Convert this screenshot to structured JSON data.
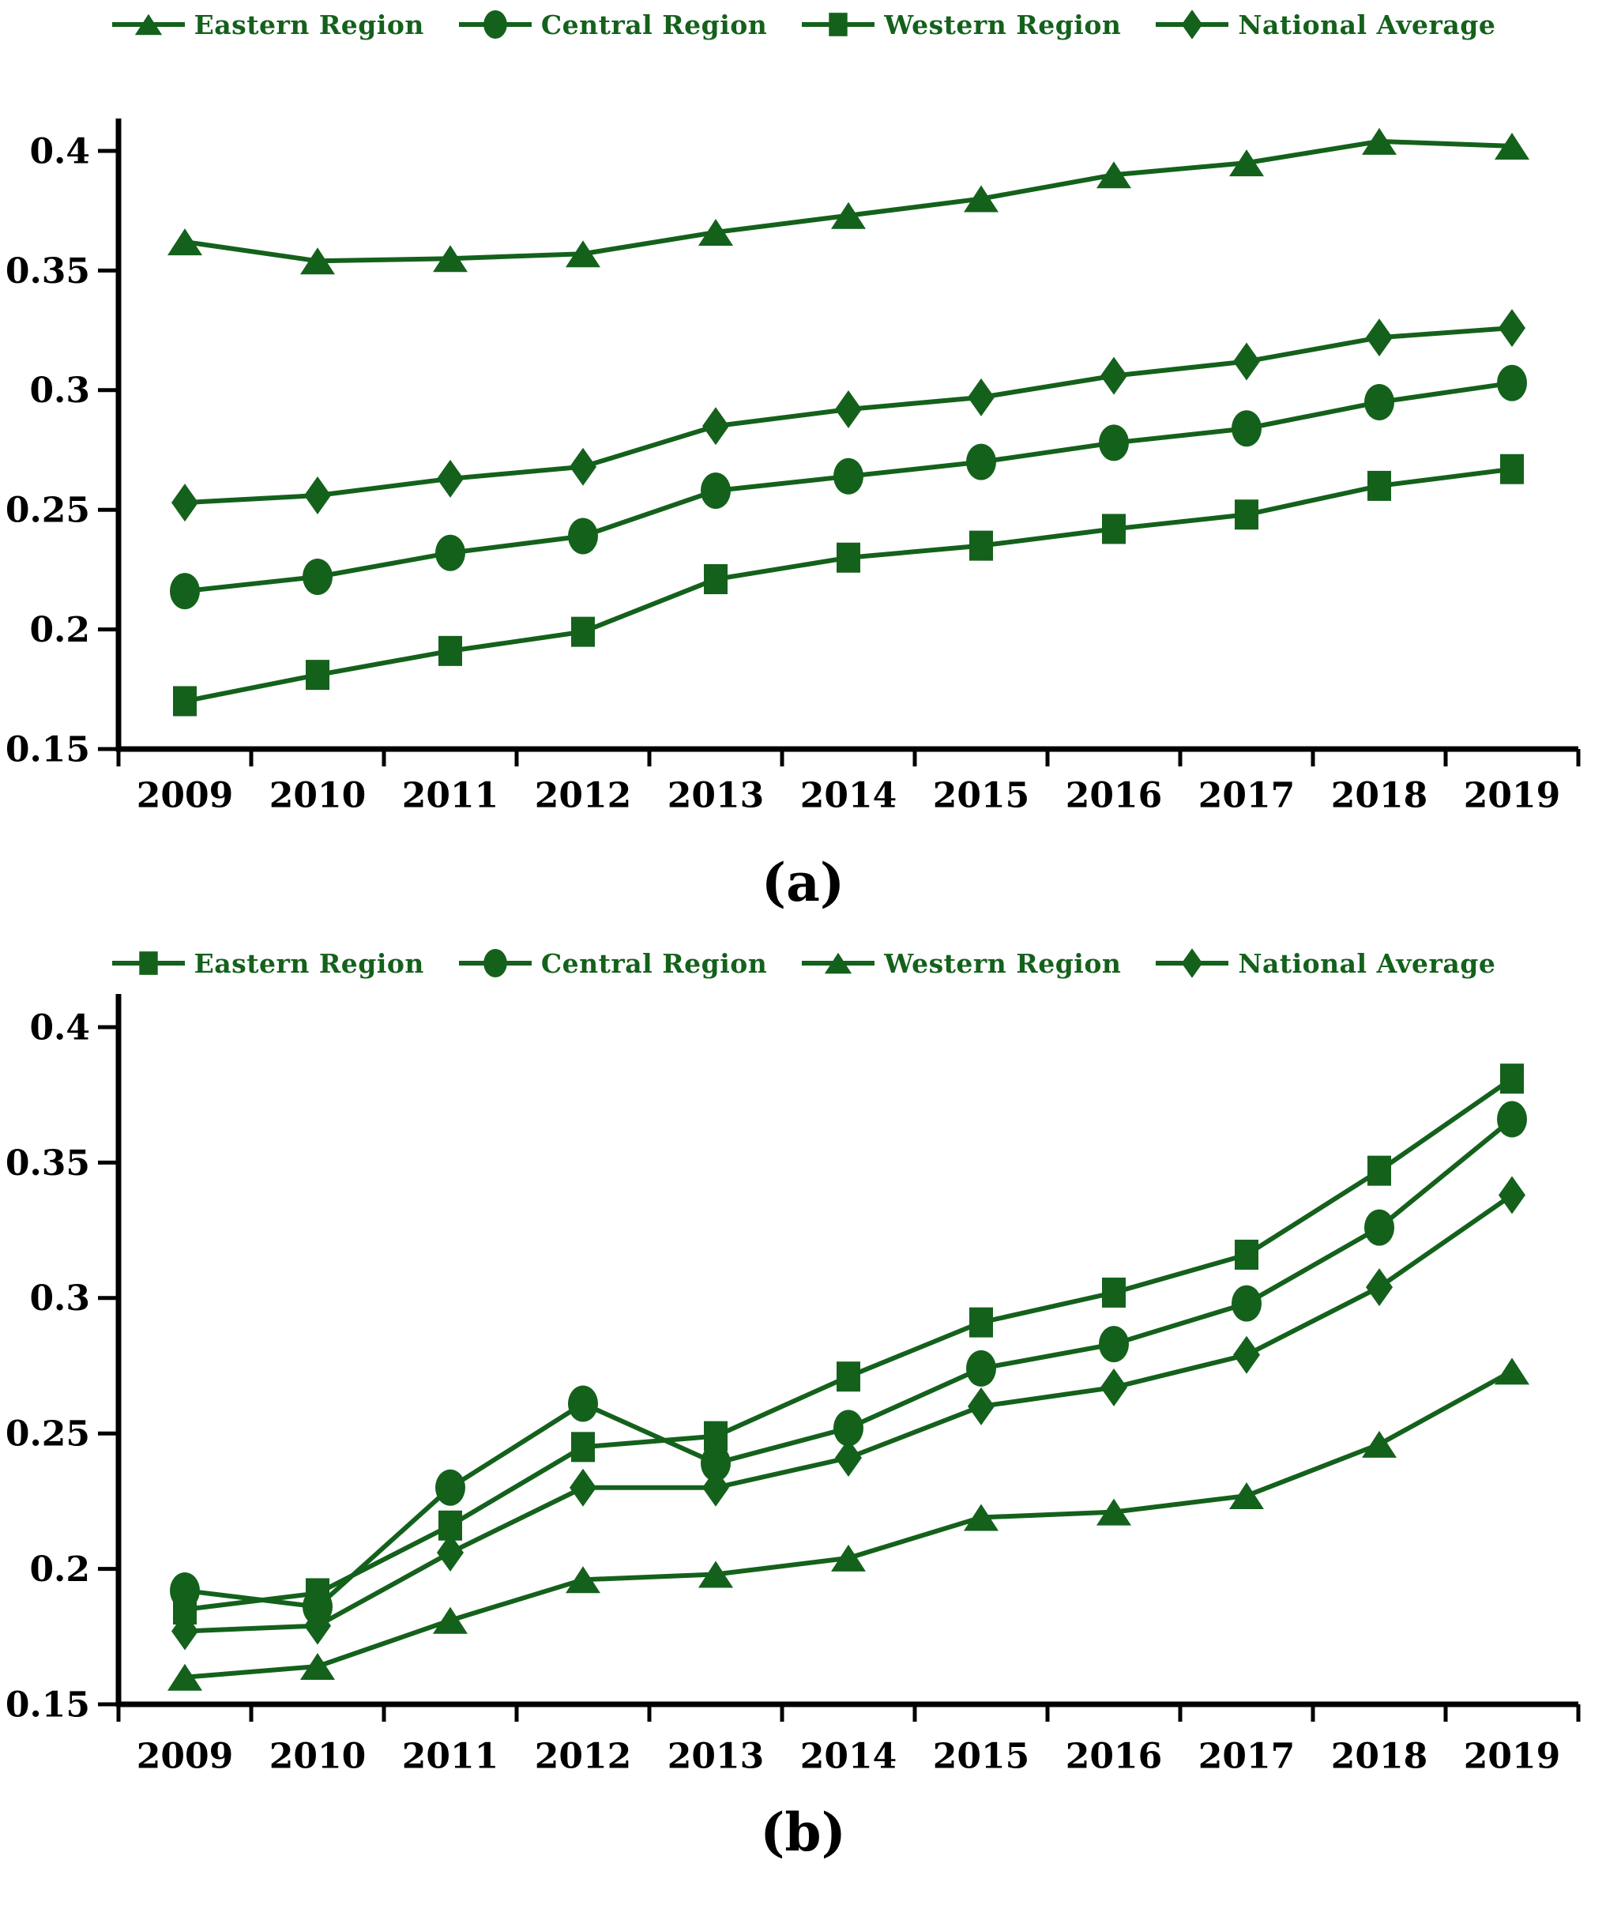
{
  "page_background": "#ffffff",
  "colors": {
    "series_green": "#14611c",
    "legend_text_green": "#14611c",
    "axis_black": "#000000",
    "caption_black": "#000000"
  },
  "icons": {
    "legend_markers": [
      "triangle-marker-icon",
      "circle-marker-icon",
      "square-marker-icon",
      "diamond-marker-icon"
    ]
  },
  "chart_data": [
    {
      "type": "line",
      "title": "(a)",
      "categories": [
        "2009",
        "2010",
        "2011",
        "2012",
        "2013",
        "2014",
        "2015",
        "2016",
        "2017",
        "2018",
        "2019"
      ],
      "ylim": [
        0.15,
        0.4
      ],
      "yticks": [
        0.4,
        0.35,
        0.3,
        0.25,
        0.2,
        0.15
      ],
      "ytick_labels": [
        "0.4",
        "0.35",
        "0.3",
        "0.25",
        "0.2",
        "0.15"
      ],
      "grid": false,
      "legend_position": "top",
      "line_color": "#14611c",
      "series": [
        {
          "name": "Eastern Region",
          "marker": "triangle",
          "values": [
            0.362,
            0.354,
            0.355,
            0.357,
            0.366,
            0.373,
            0.38,
            0.39,
            0.395,
            0.404,
            0.402
          ]
        },
        {
          "name": "Central Region",
          "marker": "circle",
          "values": [
            0.216,
            0.222,
            0.232,
            0.239,
            0.258,
            0.264,
            0.27,
            0.278,
            0.284,
            0.295,
            0.303
          ]
        },
        {
          "name": "Western Region",
          "marker": "square",
          "values": [
            0.17,
            0.181,
            0.191,
            0.199,
            0.221,
            0.23,
            0.235,
            0.242,
            0.248,
            0.26,
            0.267
          ]
        },
        {
          "name": "National Average",
          "marker": "diamond",
          "values": [
            0.253,
            0.256,
            0.263,
            0.268,
            0.285,
            0.292,
            0.297,
            0.306,
            0.312,
            0.322,
            0.326
          ]
        }
      ]
    },
    {
      "type": "line",
      "title": "(b)",
      "categories": [
        "2009",
        "2010",
        "2011",
        "2012",
        "2013",
        "2014",
        "2015",
        "2016",
        "2017",
        "2018",
        "2019"
      ],
      "ylim": [
        0.15,
        0.4
      ],
      "yticks": [
        0.4,
        0.35,
        0.3,
        0.25,
        0.2,
        0.15
      ],
      "ytick_labels": [
        "0.4",
        "0.35",
        "0.3",
        "0.25",
        "0.2",
        "0.15"
      ],
      "grid": false,
      "legend_position": "top",
      "line_color": "#14611c",
      "series": [
        {
          "name": "Eastern Region",
          "marker": "square",
          "values": [
            0.185,
            0.191,
            0.216,
            0.245,
            0.249,
            0.271,
            0.291,
            0.302,
            0.316,
            0.347,
            0.381
          ]
        },
        {
          "name": "Central Region",
          "marker": "circle",
          "values": [
            0.192,
            0.186,
            0.23,
            0.261,
            0.239,
            0.252,
            0.274,
            0.283,
            0.298,
            0.326,
            0.366
          ]
        },
        {
          "name": "Western Region",
          "marker": "triangle",
          "values": [
            0.16,
            0.164,
            0.181,
            0.196,
            0.198,
            0.204,
            0.219,
            0.221,
            0.227,
            0.246,
            0.273
          ]
        },
        {
          "name": "National Average",
          "marker": "diamond",
          "values": [
            0.177,
            0.179,
            0.206,
            0.23,
            0.23,
            0.241,
            0.26,
            0.267,
            0.279,
            0.304,
            0.338
          ]
        }
      ]
    }
  ]
}
